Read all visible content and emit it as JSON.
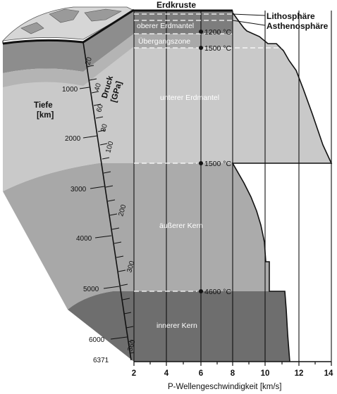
{
  "labels": {
    "crust": "Erdkruste",
    "lithosphere": "Lithosphäre",
    "asthenosphere": "Asthenosphäre",
    "upper_mantle": "oberer Erdmantel",
    "transition_zone": "Übergangszone",
    "lower_mantle": "unterer Erdmantel",
    "outer_core": "äußerer Kern",
    "inner_core": "innerer Kern",
    "depth_title_line1": "Tiefe",
    "depth_title_line2": "[km]",
    "pressure_title_line1": "Druck",
    "pressure_title_line2": "[GPa]",
    "x_axis_title": "P-Wellengeschwindigkeit [km/s]"
  },
  "temperatures": [
    "1200 °C",
    "1500 °C",
    "1500 °C",
    "4600 °C"
  ],
  "depth_ticks": [
    "1000",
    "2000",
    "3000",
    "4000",
    "5000",
    "6000",
    "6371"
  ],
  "pressure_ticks": [
    "20",
    "40",
    "60",
    "80",
    "100",
    "200",
    "300",
    "360"
  ],
  "x_ticks": [
    "2",
    "4",
    "6",
    "8",
    "10",
    "12",
    "14"
  ],
  "colors": {
    "background": "#ffffff",
    "upper_mantle": "#7d7d7d",
    "transition_zone": "#a9a9a9",
    "lower_mantle": "#c9c9c9",
    "outer_core": "#ababab",
    "inner_core": "#6e6e6e",
    "grid": "#111111"
  }
}
